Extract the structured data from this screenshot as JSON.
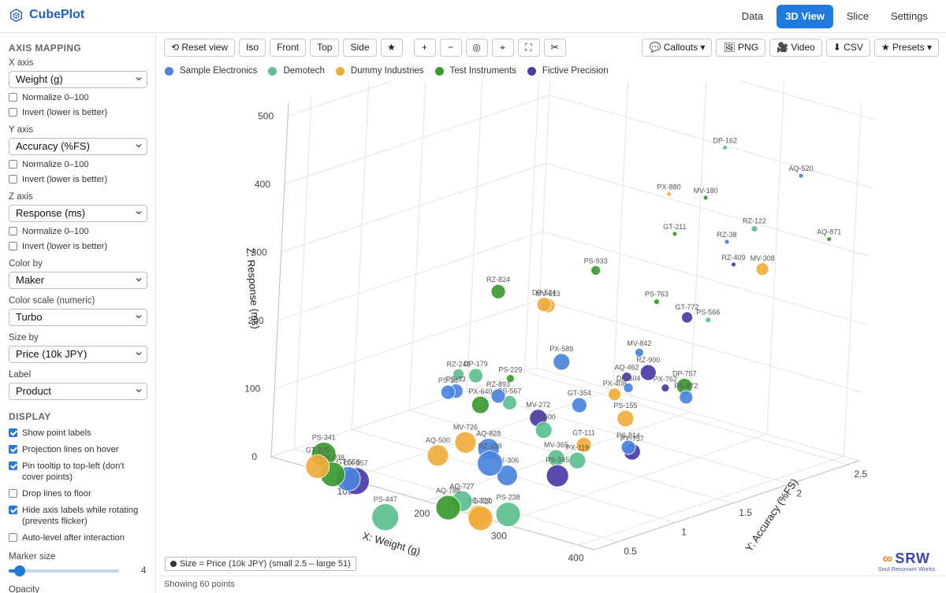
{
  "app": {
    "name": "CubePlot"
  },
  "nav": {
    "tabs": [
      {
        "label": "Data",
        "active": false
      },
      {
        "label": "3D View",
        "active": true
      },
      {
        "label": "Slice",
        "active": false
      },
      {
        "label": "Settings",
        "active": false
      }
    ]
  },
  "sidebar": {
    "axis_mapping_title": "AXIS MAPPING",
    "x_label": "X axis",
    "x_value": "Weight (g)",
    "y_label": "Y axis",
    "y_value": "Accuracy (%FS)",
    "z_label": "Z axis",
    "z_value": "Response (ms)",
    "normalize": "Normalize 0–100",
    "invert": "Invert (lower is better)",
    "color_by_label": "Color by",
    "color_by_value": "Maker",
    "color_scale_label": "Color scale (numeric)",
    "color_scale_value": "Turbo",
    "size_by_label": "Size by",
    "size_by_value": "Price (10k JPY)",
    "label_label": "Label",
    "label_value": "Product",
    "display_title": "DISPLAY",
    "display_options": [
      {
        "label": "Show point labels",
        "checked": true
      },
      {
        "label": "Projection lines on hover",
        "checked": true
      },
      {
        "label": "Pin tooltip to top-left (don't cover points)",
        "checked": true
      },
      {
        "label": "Drop lines to floor",
        "checked": false
      },
      {
        "label": "Hide axis labels while rotating (prevents flicker)",
        "checked": true
      },
      {
        "label": "Auto-level after interaction",
        "checked": false
      }
    ],
    "marker_size_label": "Marker size",
    "marker_size_value": "4",
    "marker_size_fraction": 0.1,
    "opacity_label": "Opacity"
  },
  "toolbar": {
    "reset": "⟲ Reset view",
    "iso": "Iso",
    "front": "Front",
    "top": "Top",
    "side": "Side",
    "star": "★",
    "zoom_in": "+",
    "zoom_out": "−",
    "target": "◎",
    "center": "⌖",
    "fit": "⛶",
    "cut": "✂",
    "callouts": "💬 Callouts ▾",
    "png": "🖼 PNG",
    "video": "🎥 Video",
    "csv": "⬇ CSV",
    "presets": "★ Presets ▾"
  },
  "legend": [
    {
      "name": "Sample Electronics",
      "color": "#4a84dd"
    },
    {
      "name": "Demotech",
      "color": "#5cbf8f"
    },
    {
      "name": "Dummy Industries",
      "color": "#f0ad3c"
    },
    {
      "name": "Test Instruments",
      "color": "#3a9a2f"
    },
    {
      "name": "Fictive Precision",
      "color": "#4b3aa8"
    }
  ],
  "size_note": "Size = Price (10k JPY) (small 2.5 – large 51)",
  "footer": "Showing 60 points",
  "watermark": {
    "main": "SRW",
    "sub": "Soul Resonant Works"
  },
  "chart_data": {
    "type": "scatter3d",
    "xlabel": "X: Weight (g)",
    "ylabel": "Y: Accuracy (%FS)",
    "zlabel": "Z: Response (ms)",
    "x_ticks": [
      0,
      100,
      200,
      300,
      400
    ],
    "y_ticks": [
      0.5,
      1,
      1.5,
      2,
      2.5
    ],
    "z_ticks": [
      0,
      100,
      200,
      300,
      400,
      500
    ],
    "xlim": [
      0,
      420
    ],
    "ylim": [
      0.3,
      2.6
    ],
    "zlim": [
      0,
      520
    ],
    "grid": true,
    "points": [
      {
        "label": "DP-162",
        "maker": 1,
        "x": 330,
        "y": 1.9,
        "z": 470,
        "size": 3
      },
      {
        "label": "AQ-520",
        "maker": 0,
        "x": 400,
        "y": 2.1,
        "z": 440,
        "size": 3
      },
      {
        "label": "PX-880",
        "maker": 2,
        "x": 290,
        "y": 1.7,
        "z": 400,
        "size": 3
      },
      {
        "label": "MV-180",
        "maker": 3,
        "x": 330,
        "y": 1.75,
        "z": 405,
        "size": 3
      },
      {
        "label": "RZ-122",
        "maker": 1,
        "x": 380,
        "y": 1.85,
        "z": 370,
        "size": 6
      },
      {
        "label": "AQ-871",
        "maker": 3,
        "x": 440,
        "y": 2.1,
        "z": 360,
        "size": 3
      },
      {
        "label": "RZ-38",
        "maker": 0,
        "x": 360,
        "y": 1.75,
        "z": 350,
        "size": 3
      },
      {
        "label": "GT-211",
        "maker": 3,
        "x": 300,
        "y": 1.7,
        "z": 345,
        "size": 3
      },
      {
        "label": "RZ-409",
        "maker": 4,
        "x": 370,
        "y": 1.75,
        "z": 320,
        "size": 3
      },
      {
        "label": "MV-308",
        "maker": 2,
        "x": 400,
        "y": 1.8,
        "z": 320,
        "size": 14
      },
      {
        "label": "PS-933",
        "maker": 3,
        "x": 230,
        "y": 1.5,
        "z": 280,
        "size": 10
      },
      {
        "label": "GT-772",
        "maker": 4,
        "x": 350,
        "y": 1.5,
        "z": 250,
        "size": 12
      },
      {
        "label": "PS-763",
        "maker": 3,
        "x": 310,
        "y": 1.5,
        "z": 260,
        "size": 5
      },
      {
        "label": "PS-566",
        "maker": 1,
        "x": 370,
        "y": 1.55,
        "z": 250,
        "size": 5
      },
      {
        "label": "MV-613",
        "maker": 2,
        "x": 200,
        "y": 1.3,
        "z": 230,
        "size": 16
      },
      {
        "label": "DP-524",
        "maker": 2,
        "x": 195,
        "y": 1.3,
        "z": 230,
        "size": 16
      },
      {
        "label": "RZ-824",
        "maker": 3,
        "x": 150,
        "y": 1.2,
        "z": 240,
        "size": 16
      },
      {
        "label": "MV-842",
        "maker": 0,
        "x": 320,
        "y": 1.3,
        "z": 200,
        "size": 9
      },
      {
        "label": "RZ-900",
        "maker": 4,
        "x": 340,
        "y": 1.25,
        "z": 180,
        "size": 18
      },
      {
        "label": "DP-757",
        "maker": 3,
        "x": 380,
        "y": 1.3,
        "z": 170,
        "size": 18
      },
      {
        "label": "AQ-462",
        "maker": 4,
        "x": 320,
        "y": 1.2,
        "z": 170,
        "size": 10
      },
      {
        "label": "DP-604",
        "maker": 0,
        "x": 330,
        "y": 1.15,
        "z": 160,
        "size": 10
      },
      {
        "label": "PX-762",
        "maker": 4,
        "x": 370,
        "y": 1.2,
        "z": 170,
        "size": 8
      },
      {
        "label": "PS-872",
        "maker": 0,
        "x": 390,
        "y": 1.25,
        "z": 160,
        "size": 15
      },
      {
        "label": "PX-408",
        "maker": 2,
        "x": 320,
        "y": 1.1,
        "z": 150,
        "size": 14
      },
      {
        "label": "PX-589",
        "maker": 0,
        "x": 250,
        "y": 1.1,
        "z": 175,
        "size": 19
      },
      {
        "label": "PS-155",
        "maker": 2,
        "x": 350,
        "y": 1.0,
        "z": 130,
        "size": 19
      },
      {
        "label": "PS-229",
        "maker": 3,
        "x": 200,
        "y": 1.0,
        "z": 140,
        "size": 8
      },
      {
        "label": "GT-354",
        "maker": 0,
        "x": 290,
        "y": 1.0,
        "z": 130,
        "size": 17
      },
      {
        "label": "DP-179",
        "maker": 1,
        "x": 170,
        "y": 0.9,
        "z": 140,
        "size": 16
      },
      {
        "label": "RZ-245",
        "maker": 1,
        "x": 155,
        "y": 0.85,
        "z": 140,
        "size": 12
      },
      {
        "label": "RZ-893",
        "maker": 0,
        "x": 200,
        "y": 0.9,
        "z": 120,
        "size": 16
      },
      {
        "label": "PS-567",
        "maker": 1,
        "x": 215,
        "y": 0.9,
        "z": 115,
        "size": 16
      },
      {
        "label": "PS-38",
        "maker": 0,
        "x": 150,
        "y": 0.8,
        "z": 115,
        "size": 16
      },
      {
        "label": "PX-640",
        "maker": 3,
        "x": 185,
        "y": 0.85,
        "z": 105,
        "size": 20
      },
      {
        "label": "MV-272",
        "maker": 4,
        "x": 260,
        "y": 0.85,
        "z": 110,
        "size": 20
      },
      {
        "label": "PS-600",
        "maker": 1,
        "x": 275,
        "y": 0.8,
        "z": 100,
        "size": 19
      },
      {
        "label": "GT-111",
        "maker": 2,
        "x": 320,
        "y": 0.85,
        "z": 90,
        "size": 17
      },
      {
        "label": "PS-814",
        "maker": 0,
        "x": 370,
        "y": 0.9,
        "z": 100,
        "size": 16
      },
      {
        "label": "PX-757",
        "maker": 4,
        "x": 375,
        "y": 0.9,
        "z": 95,
        "size": 19
      },
      {
        "label": "PX-119",
        "maker": 1,
        "x": 320,
        "y": 0.8,
        "z": 70,
        "size": 19
      },
      {
        "label": "MV-365",
        "maker": 1,
        "x": 300,
        "y": 0.75,
        "z": 70,
        "size": 19
      },
      {
        "label": "PS-345",
        "maker": 4,
        "x": 310,
        "y": 0.7,
        "z": 50,
        "size": 26
      },
      {
        "label": "MV-726",
        "maker": 2,
        "x": 190,
        "y": 0.7,
        "z": 60,
        "size": 25
      },
      {
        "label": "AQ-828",
        "maker": 0,
        "x": 220,
        "y": 0.7,
        "z": 60,
        "size": 25
      },
      {
        "label": "RZ-159",
        "maker": 0,
        "x": 230,
        "y": 0.65,
        "z": 45,
        "size": 30
      },
      {
        "label": "AQ-500",
        "maker": 2,
        "x": 170,
        "y": 0.6,
        "z": 40,
        "size": 25
      },
      {
        "label": "PX-306",
        "maker": 0,
        "x": 260,
        "y": 0.6,
        "z": 40,
        "size": 24
      },
      {
        "label": "AQ-727",
        "maker": 1,
        "x": 240,
        "y": 0.35,
        "z": 10,
        "size": 24
      },
      {
        "label": "PS-238",
        "maker": 1,
        "x": 300,
        "y": 0.35,
        "z": 10,
        "size": 29
      },
      {
        "label": "AQ-788",
        "maker": 3,
        "x": 230,
        "y": 0.3,
        "z": 0,
        "size": 29
      },
      {
        "label": "RZ-322",
        "maker": 2,
        "x": 270,
        "y": 0.3,
        "z": 0,
        "size": 27
      },
      {
        "label": "PS-720",
        "maker": 2,
        "x": 275,
        "y": 0.28,
        "z": 0,
        "size": 29
      },
      {
        "label": "PS-341",
        "maker": 3,
        "x": 60,
        "y": 0.35,
        "z": 20,
        "size": 29
      },
      {
        "label": "GT-226",
        "maker": 2,
        "x": 60,
        "y": 0.3,
        "z": 5,
        "size": 28
      },
      {
        "label": "PX-938",
        "maker": 3,
        "x": 80,
        "y": 0.3,
        "z": 0,
        "size": 29
      },
      {
        "label": "GT-556",
        "maker": 0,
        "x": 100,
        "y": 0.3,
        "z": 0,
        "size": 29
      },
      {
        "label": "DX-357",
        "maker": 4,
        "x": 110,
        "y": 0.3,
        "z": 0,
        "size": 32
      },
      {
        "label": "PS-447",
        "maker": 1,
        "x": 150,
        "y": 0.3,
        "z": -40,
        "size": 32
      },
      {
        "label": "PS-33",
        "maker": 0,
        "x": 160,
        "y": 0.8,
        "z": 120,
        "size": 16
      }
    ]
  }
}
